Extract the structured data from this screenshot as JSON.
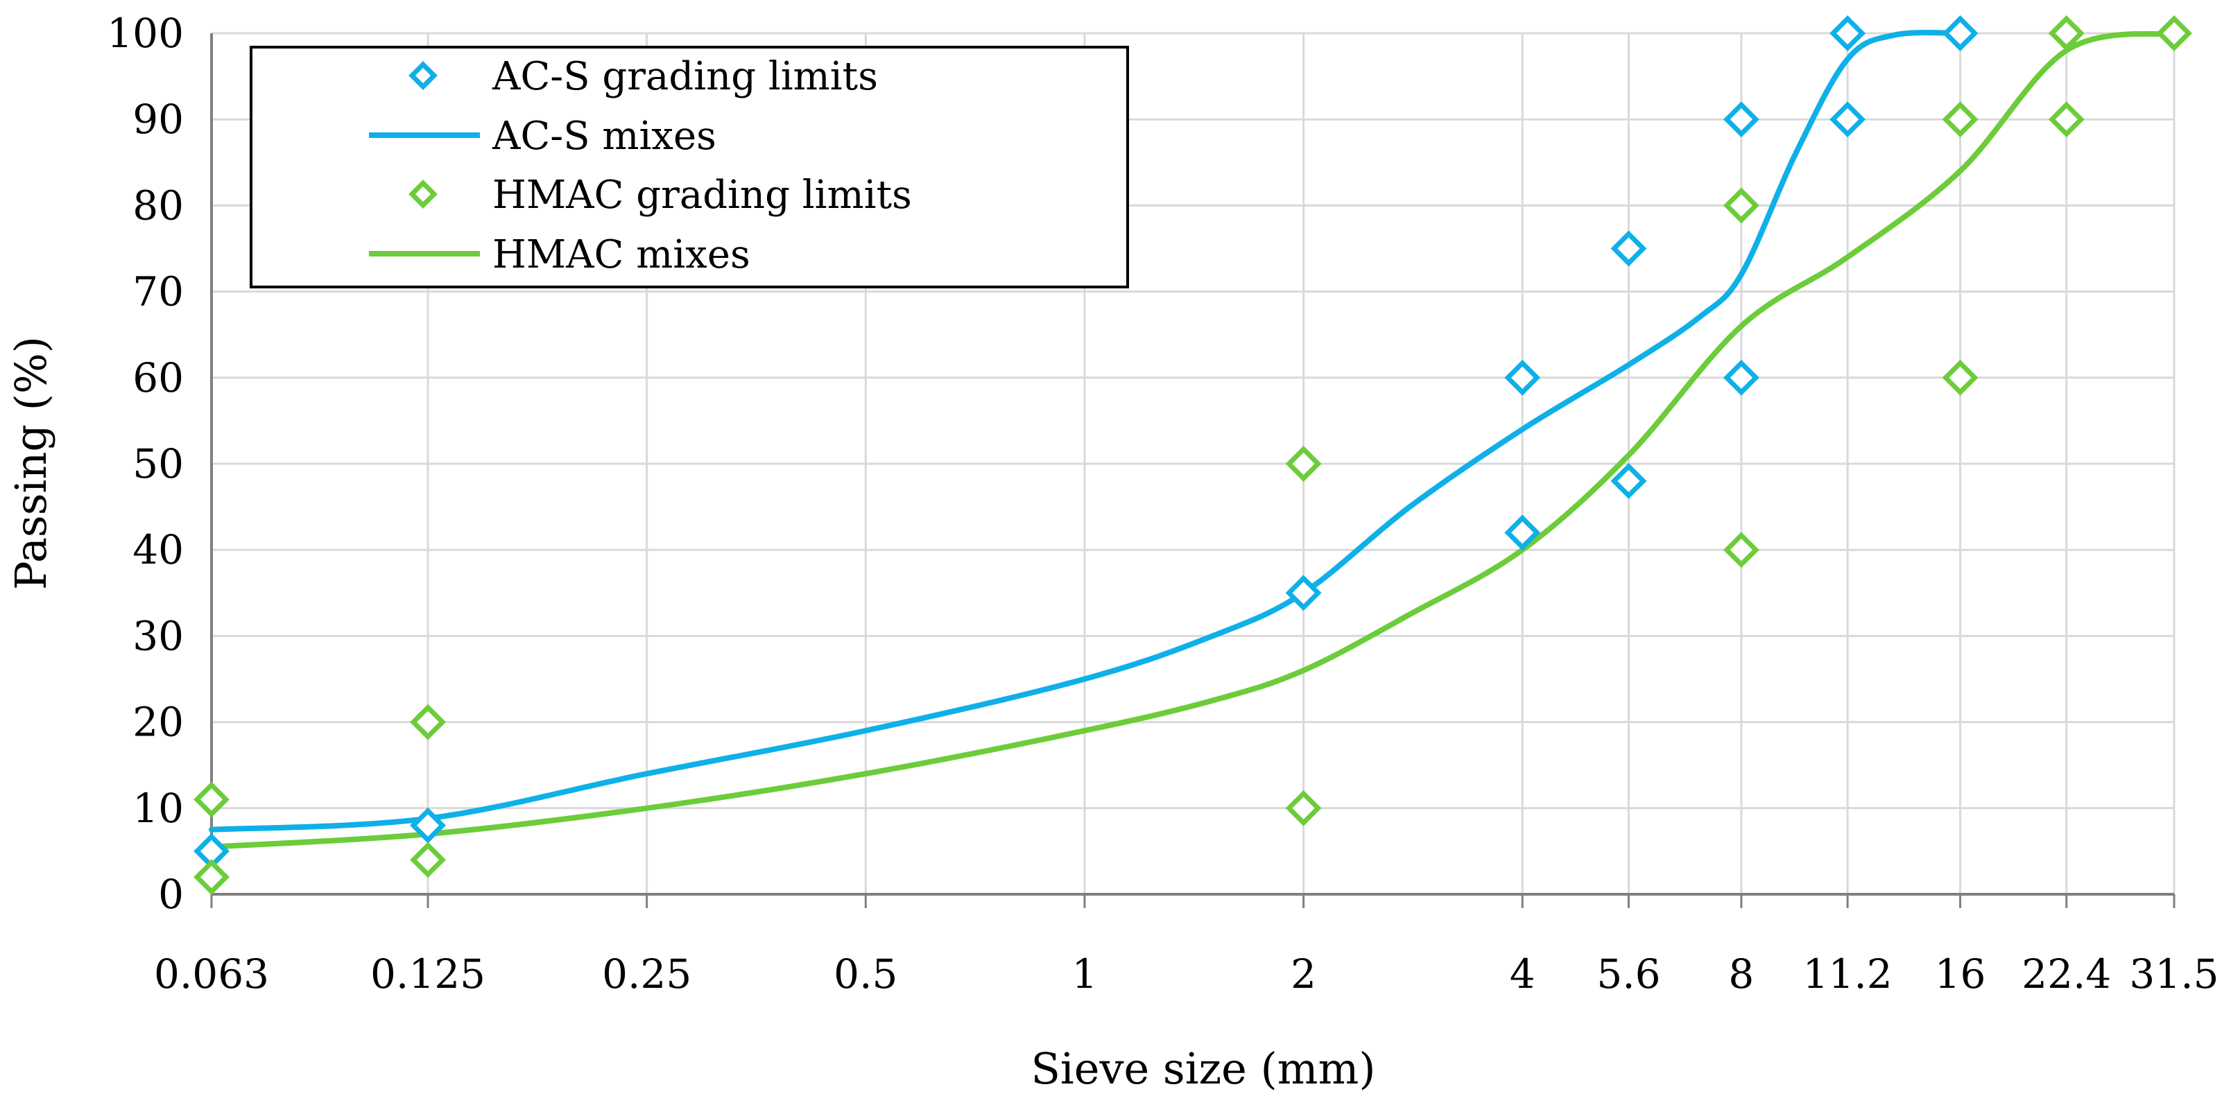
{
  "chart_data": {
    "type": "line",
    "title": "",
    "xlabel": "Sieve size (mm)",
    "ylabel": "Passing (%)",
    "x_scale": "log2",
    "categories": [
      "0.063",
      "0.125",
      "0.25",
      "0.5",
      "1",
      "2",
      "4",
      "5.6",
      "8",
      "11.2",
      "16",
      "22.4",
      "31.5"
    ],
    "x_values": [
      0.063,
      0.125,
      0.25,
      0.5,
      1,
      2,
      4,
      5.6,
      8,
      11.2,
      16,
      22.4,
      31.5
    ],
    "ylim": [
      0,
      100
    ],
    "y_ticks": [
      0,
      10,
      20,
      30,
      40,
      50,
      60,
      70,
      80,
      90,
      100
    ],
    "y_tick_labels": [
      "0",
      "10",
      "20",
      "30",
      "40",
      "50",
      "60",
      "70",
      "80",
      "90",
      "100"
    ],
    "grid": true,
    "legend_position": "top-left",
    "colors": {
      "acs": "#0fb0e8",
      "hmac": "#6ccc3a",
      "grid": "#d9d9d9",
      "axis": "#7f7f7f"
    },
    "series": [
      {
        "name": "AC-S grading limits",
        "kind": "markers",
        "color_key": "acs",
        "points": [
          [
            0.063,
            5
          ],
          [
            0.125,
            8
          ],
          [
            2,
            35
          ],
          [
            4,
            42
          ],
          [
            4,
            60
          ],
          [
            5.6,
            48
          ],
          [
            5.6,
            75
          ],
          [
            8,
            60
          ],
          [
            8,
            90
          ],
          [
            11.2,
            90
          ],
          [
            11.2,
            100
          ],
          [
            16,
            100
          ]
        ]
      },
      {
        "name": "AC-S mixes",
        "kind": "line",
        "color_key": "acs",
        "points": [
          [
            0.063,
            7.5
          ],
          [
            0.125,
            8.8
          ],
          [
            0.25,
            14
          ],
          [
            0.5,
            19
          ],
          [
            1,
            25
          ],
          [
            1.5,
            30
          ],
          [
            2,
            35
          ],
          [
            2.8,
            45
          ],
          [
            4,
            54
          ],
          [
            5.6,
            61.5
          ],
          [
            7,
            67
          ],
          [
            8,
            72
          ],
          [
            9.5,
            86
          ],
          [
            11.2,
            97
          ],
          [
            13,
            99.8
          ],
          [
            16,
            100
          ]
        ]
      },
      {
        "name": "HMAC grading limits",
        "kind": "markers",
        "color_key": "hmac",
        "points": [
          [
            0.063,
            2
          ],
          [
            0.063,
            11
          ],
          [
            0.125,
            4
          ],
          [
            0.125,
            20
          ],
          [
            2,
            10
          ],
          [
            2,
            50
          ],
          [
            8,
            40
          ],
          [
            8,
            80
          ],
          [
            16,
            60
          ],
          [
            16,
            90
          ],
          [
            22.4,
            90
          ],
          [
            22.4,
            100
          ],
          [
            31.5,
            100
          ]
        ]
      },
      {
        "name": "HMAC mixes",
        "kind": "line",
        "color_key": "hmac",
        "points": [
          [
            0.063,
            5.5
          ],
          [
            0.125,
            7
          ],
          [
            0.25,
            10
          ],
          [
            0.5,
            14
          ],
          [
            1,
            19
          ],
          [
            1.5,
            22.5
          ],
          [
            2,
            26
          ],
          [
            2.8,
            32.5
          ],
          [
            4,
            40
          ],
          [
            5.6,
            51
          ],
          [
            8,
            66
          ],
          [
            11.2,
            74
          ],
          [
            16,
            84
          ],
          [
            22.4,
            98
          ],
          [
            31.5,
            100
          ]
        ]
      }
    ]
  }
}
